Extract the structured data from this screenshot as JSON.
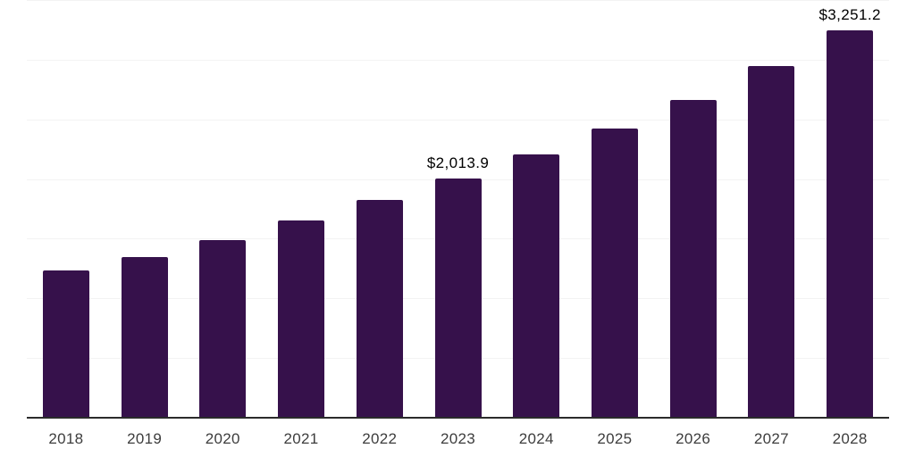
{
  "chart_data": {
    "type": "bar",
    "title": "",
    "xlabel": "",
    "ylabel": "",
    "categories": [
      "2018",
      "2019",
      "2020",
      "2021",
      "2022",
      "2023",
      "2024",
      "2025",
      "2026",
      "2027",
      "2028"
    ],
    "values": [
      1244,
      1353,
      1494,
      1657,
      1833,
      2013.9,
      2215,
      2433,
      2673,
      2957,
      3251.2
    ],
    "labeled_points": [
      {
        "category": "2023",
        "label": "$2,013.9"
      },
      {
        "category": "2028",
        "label": "$3,251.2"
      }
    ],
    "ylim": [
      0,
      3500
    ],
    "gridline_step": 500,
    "grid": "horizontal",
    "legend": "none",
    "colors": {
      "bar": "#36114B",
      "gridline": "#f3f3f3",
      "axis": "#2b2b2b",
      "tick_label": "#3d3d3d",
      "data_label": "#000000"
    }
  }
}
